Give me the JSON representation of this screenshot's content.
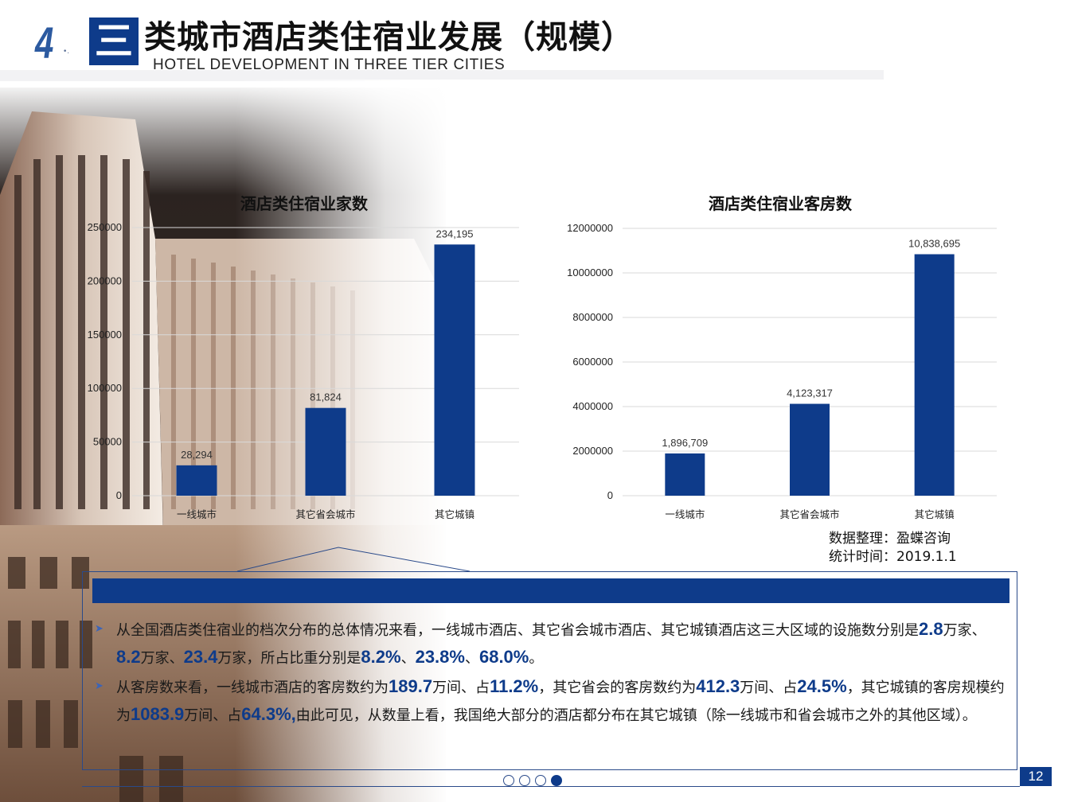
{
  "header": {
    "section_number": "4",
    "box_char": "三",
    "title": "类城市酒店类住宿业发展（规模）",
    "subtitle": "HOTEL DEVELOPMENT IN THREE TIER CITIES"
  },
  "chart_data": [
    {
      "type": "bar",
      "title": "酒店类住宿业家数",
      "categories": [
        "一线城市",
        "其它省会城市",
        "其它城镇"
      ],
      "values": [
        28294,
        81824,
        234195
      ],
      "data_labels": [
        "28,294",
        "81,824",
        "234,195"
      ],
      "yticks": [
        "0",
        "50000",
        "100000",
        "150000",
        "200000",
        "250000"
      ],
      "ylim": [
        0,
        250000
      ],
      "grid": true,
      "bar_color": "#0e3b8a"
    },
    {
      "type": "bar",
      "title": "酒店类住宿业客房数",
      "categories": [
        "一线城市",
        "其它省会城市",
        "其它城镇"
      ],
      "values": [
        1896709,
        4123317,
        10838695
      ],
      "data_labels": [
        "1,896,709",
        "4,123,317",
        "10,838,695"
      ],
      "yticks": [
        "0",
        "2000000",
        "4000000",
        "6000000",
        "8000000",
        "10000000",
        "12000000"
      ],
      "ylim": [
        0,
        12000000
      ],
      "grid": true,
      "bar_color": "#0e3b8a"
    }
  ],
  "source": {
    "line1": "数据整理：盈蝶咨询",
    "line2": "统计时间：2019.1.1"
  },
  "summary": {
    "p1": {
      "t1": "从全国酒店类住宿业的档次分布的总体情况来看，一线城市酒店、其它省会城市酒店、其它城镇酒店这三大区域的设施数分别是",
      "v1": "2.8",
      "t2": "万家、",
      "v2": "8.2",
      "t3": "万家、",
      "v3": "23.4",
      "t4": "万家，所占比重分别是",
      "v4": "8.2%",
      "t5": "、",
      "v5": "23.8%",
      "t6": "、",
      "v6": "68.0%",
      "t7": "。"
    },
    "p2": {
      "t1": "从客房数来看，一线城市酒店的客房数约为",
      "v1": "189.7",
      "t2": "万间、占",
      "v2": "11.2%",
      "t3": "，其它省会的客房数约为",
      "v3": "412.3",
      "t4": "万间、占",
      "v4": "24.5%",
      "t5": "，其它城镇的客房规模约为",
      "v5": "1083.9",
      "t6": "万间、占",
      "v6": "64.3%,",
      "t7": "由此可见，从数量上看，我国绝大部分的酒店都分布在其它城镇（除一线城市和省会城市之外的其他区域）。"
    }
  },
  "footer": {
    "page_number": "12",
    "pager_total": 4,
    "pager_active": 4
  }
}
